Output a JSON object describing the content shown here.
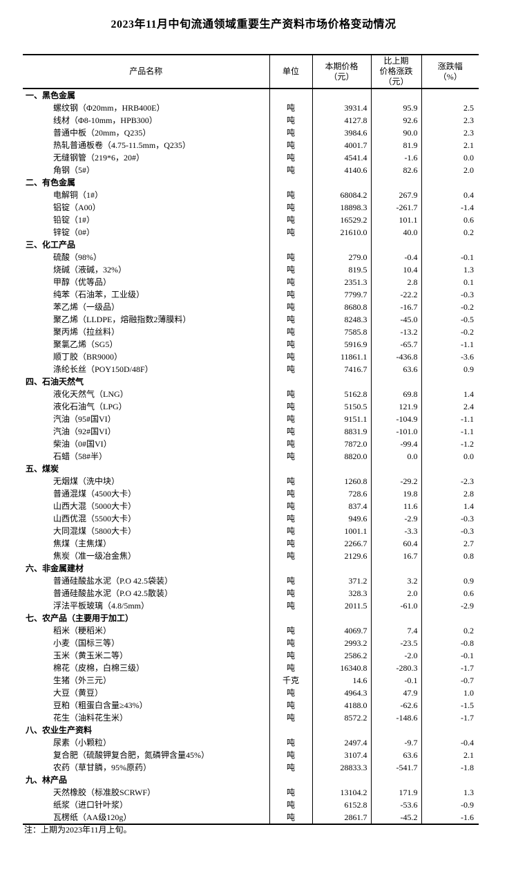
{
  "title": "2023年11月中旬流通领域重要生产资料市场价格变动情况",
  "note": "注：上期为2023年11月上旬。",
  "table": {
    "headers": {
      "product": "产品名称",
      "unit": "单位",
      "price": "本期价格\n（元）",
      "change": "比上期\n价格涨跌\n（元）",
      "pct": "涨跌幅\n（%）"
    },
    "sections": [
      {
        "name": "一、黑色金属",
        "items": [
          {
            "name": "螺纹钢（Φ20mm，HRB400E）",
            "unit": "吨",
            "price": "3931.4",
            "change": "95.9",
            "pct": "2.5"
          },
          {
            "name": "线材（Φ8-10mm，HPB300）",
            "unit": "吨",
            "price": "4127.8",
            "change": "92.6",
            "pct": "2.3"
          },
          {
            "name": "普通中板（20mm，Q235）",
            "unit": "吨",
            "price": "3984.6",
            "change": "90.0",
            "pct": "2.3"
          },
          {
            "name": "热轧普通板卷（4.75-11.5mm，Q235）",
            "unit": "吨",
            "price": "4001.7",
            "change": "81.9",
            "pct": "2.1"
          },
          {
            "name": "无缝钢管（219*6，20#）",
            "unit": "吨",
            "price": "4541.4",
            "change": "-1.6",
            "pct": "0.0"
          },
          {
            "name": "角钢（5#）",
            "unit": "吨",
            "price": "4140.6",
            "change": "82.6",
            "pct": "2.0"
          }
        ]
      },
      {
        "name": "二、有色金属",
        "items": [
          {
            "name": "电解铜（1#）",
            "unit": "吨",
            "price": "68084.2",
            "change": "267.9",
            "pct": "0.4"
          },
          {
            "name": "铝锭（A00）",
            "unit": "吨",
            "price": "18898.3",
            "change": "-261.7",
            "pct": "-1.4"
          },
          {
            "name": "铅锭（1#）",
            "unit": "吨",
            "price": "16529.2",
            "change": "101.1",
            "pct": "0.6"
          },
          {
            "name": "锌锭（0#）",
            "unit": "吨",
            "price": "21610.0",
            "change": "40.0",
            "pct": "0.2"
          }
        ]
      },
      {
        "name": "三、化工产品",
        "items": [
          {
            "name": "硫酸（98%）",
            "unit": "吨",
            "price": "279.0",
            "change": "-0.4",
            "pct": "-0.1"
          },
          {
            "name": "烧碱（液碱，32%）",
            "unit": "吨",
            "price": "819.5",
            "change": "10.4",
            "pct": "1.3"
          },
          {
            "name": "甲醇（优等品）",
            "unit": "吨",
            "price": "2351.3",
            "change": "2.8",
            "pct": "0.1"
          },
          {
            "name": "纯苯（石油苯，工业级）",
            "unit": "吨",
            "price": "7799.7",
            "change": "-22.2",
            "pct": "-0.3"
          },
          {
            "name": "苯乙烯（一级品）",
            "unit": "吨",
            "price": "8680.8",
            "change": "-16.7",
            "pct": "-0.2"
          },
          {
            "name": "聚乙烯（LLDPE，熔融指数2薄膜料）",
            "unit": "吨",
            "price": "8248.3",
            "change": "-45.0",
            "pct": "-0.5"
          },
          {
            "name": "聚丙烯（拉丝料）",
            "unit": "吨",
            "price": "7585.8",
            "change": "-13.2",
            "pct": "-0.2"
          },
          {
            "name": "聚氯乙烯（SG5）",
            "unit": "吨",
            "price": "5916.9",
            "change": "-65.7",
            "pct": "-1.1"
          },
          {
            "name": "顺丁胶（BR9000）",
            "unit": "吨",
            "price": "11861.1",
            "change": "-436.8",
            "pct": "-3.6"
          },
          {
            "name": "涤纶长丝（POY150D/48F）",
            "unit": "吨",
            "price": "7416.7",
            "change": "63.6",
            "pct": "0.9"
          }
        ]
      },
      {
        "name": "四、石油天然气",
        "items": [
          {
            "name": "液化天然气（LNG）",
            "unit": "吨",
            "price": "5162.8",
            "change": "69.8",
            "pct": "1.4"
          },
          {
            "name": "液化石油气（LPG）",
            "unit": "吨",
            "price": "5150.5",
            "change": "121.9",
            "pct": "2.4"
          },
          {
            "name": "汽油（95#国VI）",
            "unit": "吨",
            "price": "9151.1",
            "change": "-104.9",
            "pct": "-1.1"
          },
          {
            "name": "汽油（92#国VI）",
            "unit": "吨",
            "price": "8831.9",
            "change": "-101.0",
            "pct": "-1.1"
          },
          {
            "name": "柴油（0#国VI）",
            "unit": "吨",
            "price": "7872.0",
            "change": "-99.4",
            "pct": "-1.2"
          },
          {
            "name": "石蜡（58#半）",
            "unit": "吨",
            "price": "8820.0",
            "change": "0.0",
            "pct": "0.0"
          }
        ]
      },
      {
        "name": "五、煤炭",
        "items": [
          {
            "name": "无烟煤（洗中块）",
            "unit": "吨",
            "price": "1260.8",
            "change": "-29.2",
            "pct": "-2.3"
          },
          {
            "name": "普通混煤（4500大卡）",
            "unit": "吨",
            "price": "728.6",
            "change": "19.8",
            "pct": "2.8"
          },
          {
            "name": "山西大混（5000大卡）",
            "unit": "吨",
            "price": "837.4",
            "change": "11.6",
            "pct": "1.4"
          },
          {
            "name": "山西优混（5500大卡）",
            "unit": "吨",
            "price": "949.6",
            "change": "-2.9",
            "pct": "-0.3"
          },
          {
            "name": "大同混煤（5800大卡）",
            "unit": "吨",
            "price": "1001.1",
            "change": "-3.3",
            "pct": "-0.3"
          },
          {
            "name": "焦煤（主焦煤）",
            "unit": "吨",
            "price": "2266.7",
            "change": "60.4",
            "pct": "2.7"
          },
          {
            "name": "焦炭（准一级冶金焦）",
            "unit": "吨",
            "price": "2129.6",
            "change": "16.7",
            "pct": "0.8"
          }
        ]
      },
      {
        "name": "六、非金属建材",
        "items": [
          {
            "name": "普通硅酸盐水泥（P.O 42.5袋装）",
            "unit": "吨",
            "price": "371.2",
            "change": "3.2",
            "pct": "0.9"
          },
          {
            "name": "普通硅酸盐水泥（P.O 42.5散装）",
            "unit": "吨",
            "price": "328.3",
            "change": "2.0",
            "pct": "0.6"
          },
          {
            "name": "浮法平板玻璃（4.8/5mm）",
            "unit": "吨",
            "price": "2011.5",
            "change": "-61.0",
            "pct": "-2.9"
          }
        ]
      },
      {
        "name": "七、农产品（主要用于加工）",
        "items": [
          {
            "name": "稻米（粳稻米）",
            "unit": "吨",
            "price": "4069.7",
            "change": "7.4",
            "pct": "0.2"
          },
          {
            "name": "小麦（国标三等）",
            "unit": "吨",
            "price": "2993.2",
            "change": "-23.5",
            "pct": "-0.8"
          },
          {
            "name": "玉米（黄玉米二等）",
            "unit": "吨",
            "price": "2586.2",
            "change": "-2.0",
            "pct": "-0.1"
          },
          {
            "name": "棉花（皮棉，白棉三级）",
            "unit": "吨",
            "price": "16340.8",
            "change": "-280.3",
            "pct": "-1.7"
          },
          {
            "name": "生猪（外三元）",
            "unit": "千克",
            "price": "14.6",
            "change": "-0.1",
            "pct": "-0.7"
          },
          {
            "name": "大豆（黄豆）",
            "unit": "吨",
            "price": "4964.3",
            "change": "47.9",
            "pct": "1.0"
          },
          {
            "name": "豆粕（粗蛋白含量≥43%）",
            "unit": "吨",
            "price": "4188.0",
            "change": "-62.6",
            "pct": "-1.5"
          },
          {
            "name": "花生（油料花生米）",
            "unit": "吨",
            "price": "8572.2",
            "change": "-148.6",
            "pct": "-1.7"
          }
        ]
      },
      {
        "name": "八、农业生产资料",
        "items": [
          {
            "name": "尿素（小颗粒）",
            "unit": "吨",
            "price": "2497.4",
            "change": "-9.7",
            "pct": "-0.4"
          },
          {
            "name": "复合肥（硫酸钾复合肥，氮磷钾含量45%）",
            "unit": "吨",
            "price": "3107.4",
            "change": "63.6",
            "pct": "2.1"
          },
          {
            "name": "农药（草甘膦，95%原药）",
            "unit": "吨",
            "price": "28833.3",
            "change": "-541.7",
            "pct": "-1.8"
          }
        ]
      },
      {
        "name": "九、林产品",
        "items": [
          {
            "name": "天然橡胶（标准胶SCRWF）",
            "unit": "吨",
            "price": "13104.2",
            "change": "171.9",
            "pct": "1.3"
          },
          {
            "name": "纸浆（进口针叶浆）",
            "unit": "吨",
            "price": "6152.8",
            "change": "-53.6",
            "pct": "-0.9"
          },
          {
            "name": "瓦楞纸（AA级120g）",
            "unit": "吨",
            "price": "2861.7",
            "change": "-45.2",
            "pct": "-1.6"
          }
        ]
      }
    ]
  }
}
